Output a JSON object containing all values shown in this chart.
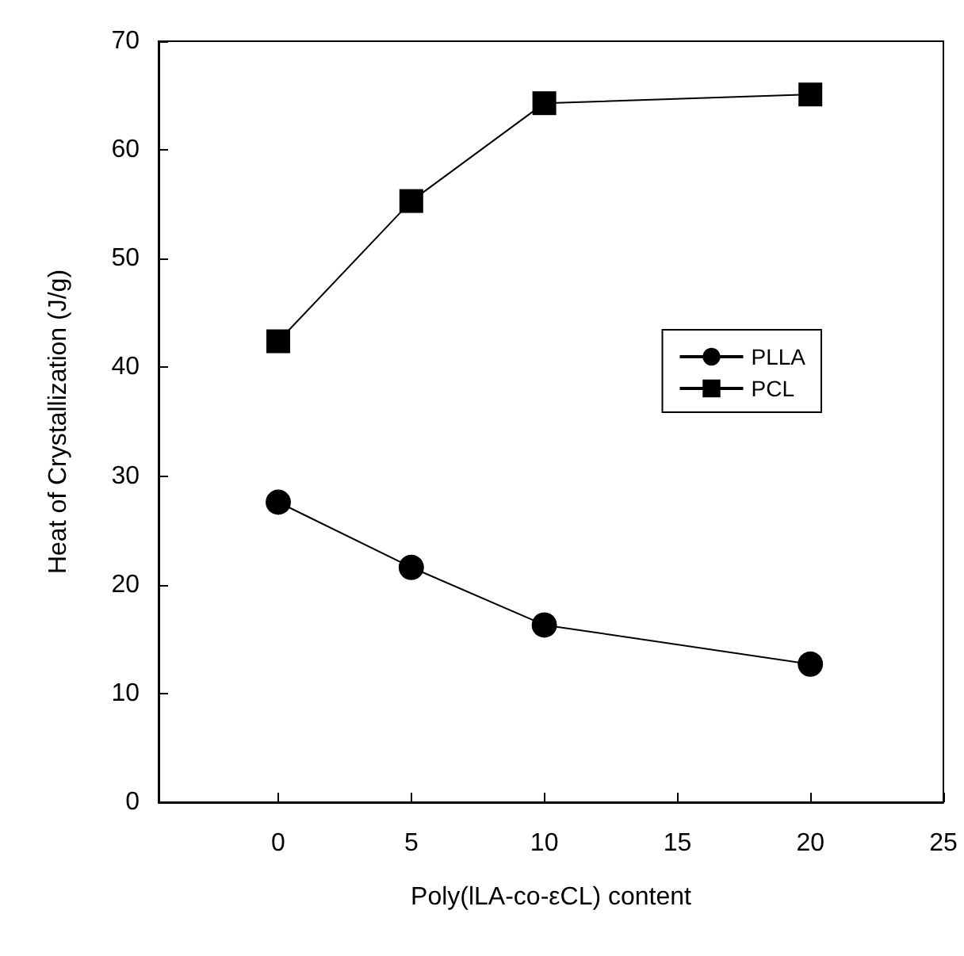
{
  "chart_data": {
    "type": "line",
    "xlabel": "Poly(lLA-co-εCL) content",
    "ylabel": "Heat of Crystallization (J/g)",
    "x": [
      0,
      5,
      10,
      20
    ],
    "series": [
      {
        "name": "PLLA",
        "color": "#000000",
        "marker": "circle",
        "values": [
          27.6,
          21.6,
          16.3,
          12.7
        ]
      },
      {
        "name": "PCL",
        "color": "#000000",
        "marker": "square",
        "values": [
          42.4,
          55.3,
          64.3,
          65.1
        ]
      }
    ],
    "xlim": [
      -4.5,
      25
    ],
    "xticks": [
      0,
      5,
      10,
      15,
      20,
      25
    ],
    "ylim": [
      0,
      70
    ],
    "yticks": [
      0,
      10,
      20,
      30,
      40,
      50,
      60,
      70
    ],
    "grid": false,
    "legend": "right",
    "line_style": "solid"
  }
}
